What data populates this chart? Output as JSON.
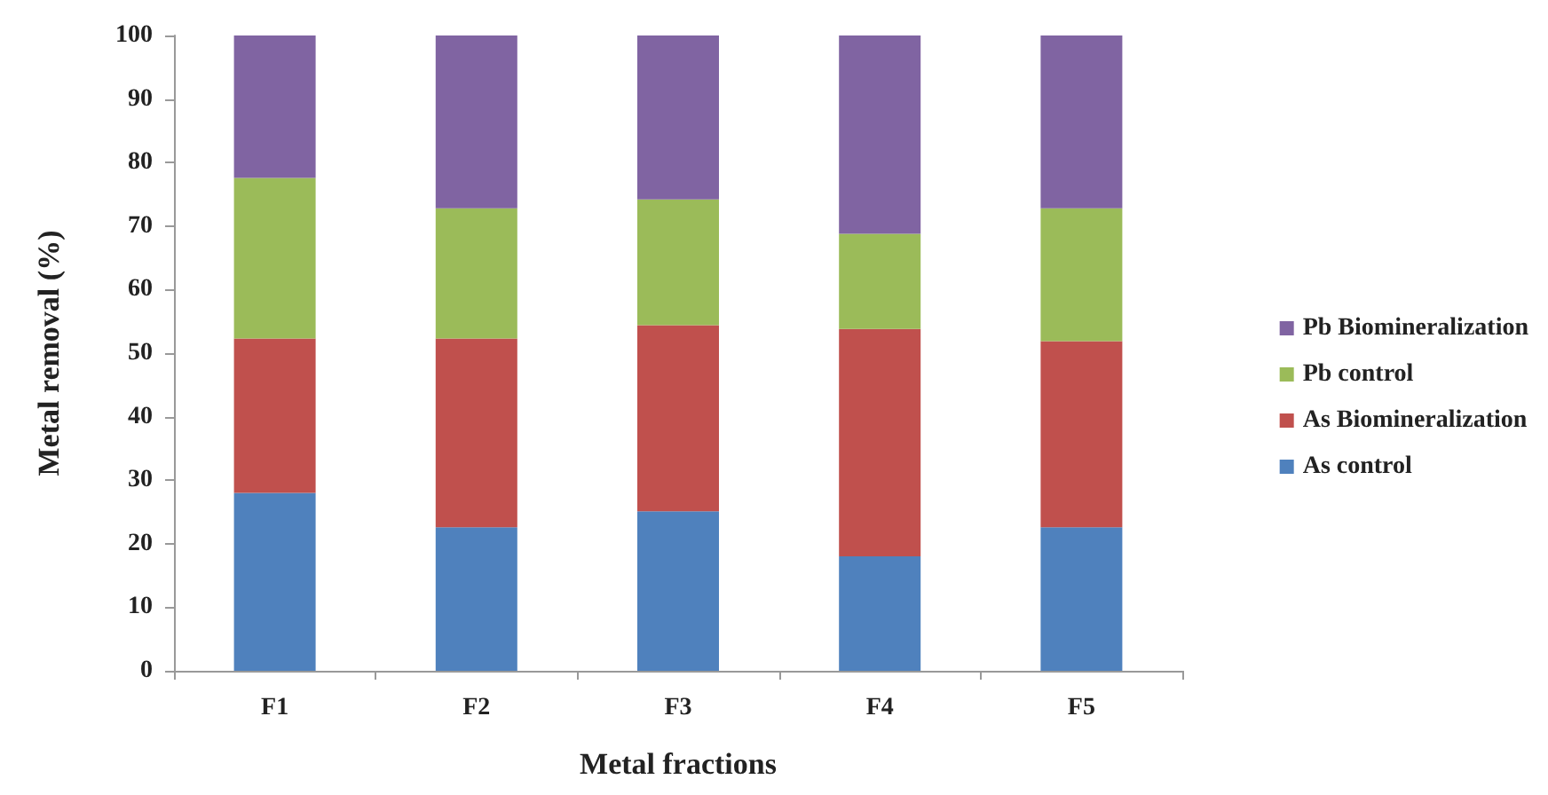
{
  "chart_data": {
    "type": "bar",
    "stacked": true,
    "xlabel": "Metal fractions",
    "ylabel": "Metal removal (%)",
    "categories": [
      "F1",
      "F2",
      "F3",
      "F4",
      "F5"
    ],
    "series": [
      {
        "name": "As control",
        "color": "#4f81bd",
        "values": [
          28.0,
          22.6,
          25.1,
          18.0,
          22.6
        ]
      },
      {
        "name": "As Biomineralization",
        "color": "#c0504d",
        "values": [
          24.3,
          29.7,
          29.3,
          35.8,
          29.3
        ]
      },
      {
        "name": "Pb control",
        "color": "#9bbb59",
        "values": [
          25.3,
          20.5,
          19.8,
          15.0,
          20.9
        ]
      },
      {
        "name": "Pb Biomineralization",
        "color": "#8064a2",
        "values": [
          22.4,
          27.2,
          25.8,
          31.2,
          27.2
        ]
      }
    ],
    "ylim": [
      0,
      100
    ],
    "yticks": [
      0,
      10,
      20,
      30,
      40,
      50,
      60,
      70,
      80,
      90,
      100
    ],
    "grid": false,
    "legend": "right"
  }
}
